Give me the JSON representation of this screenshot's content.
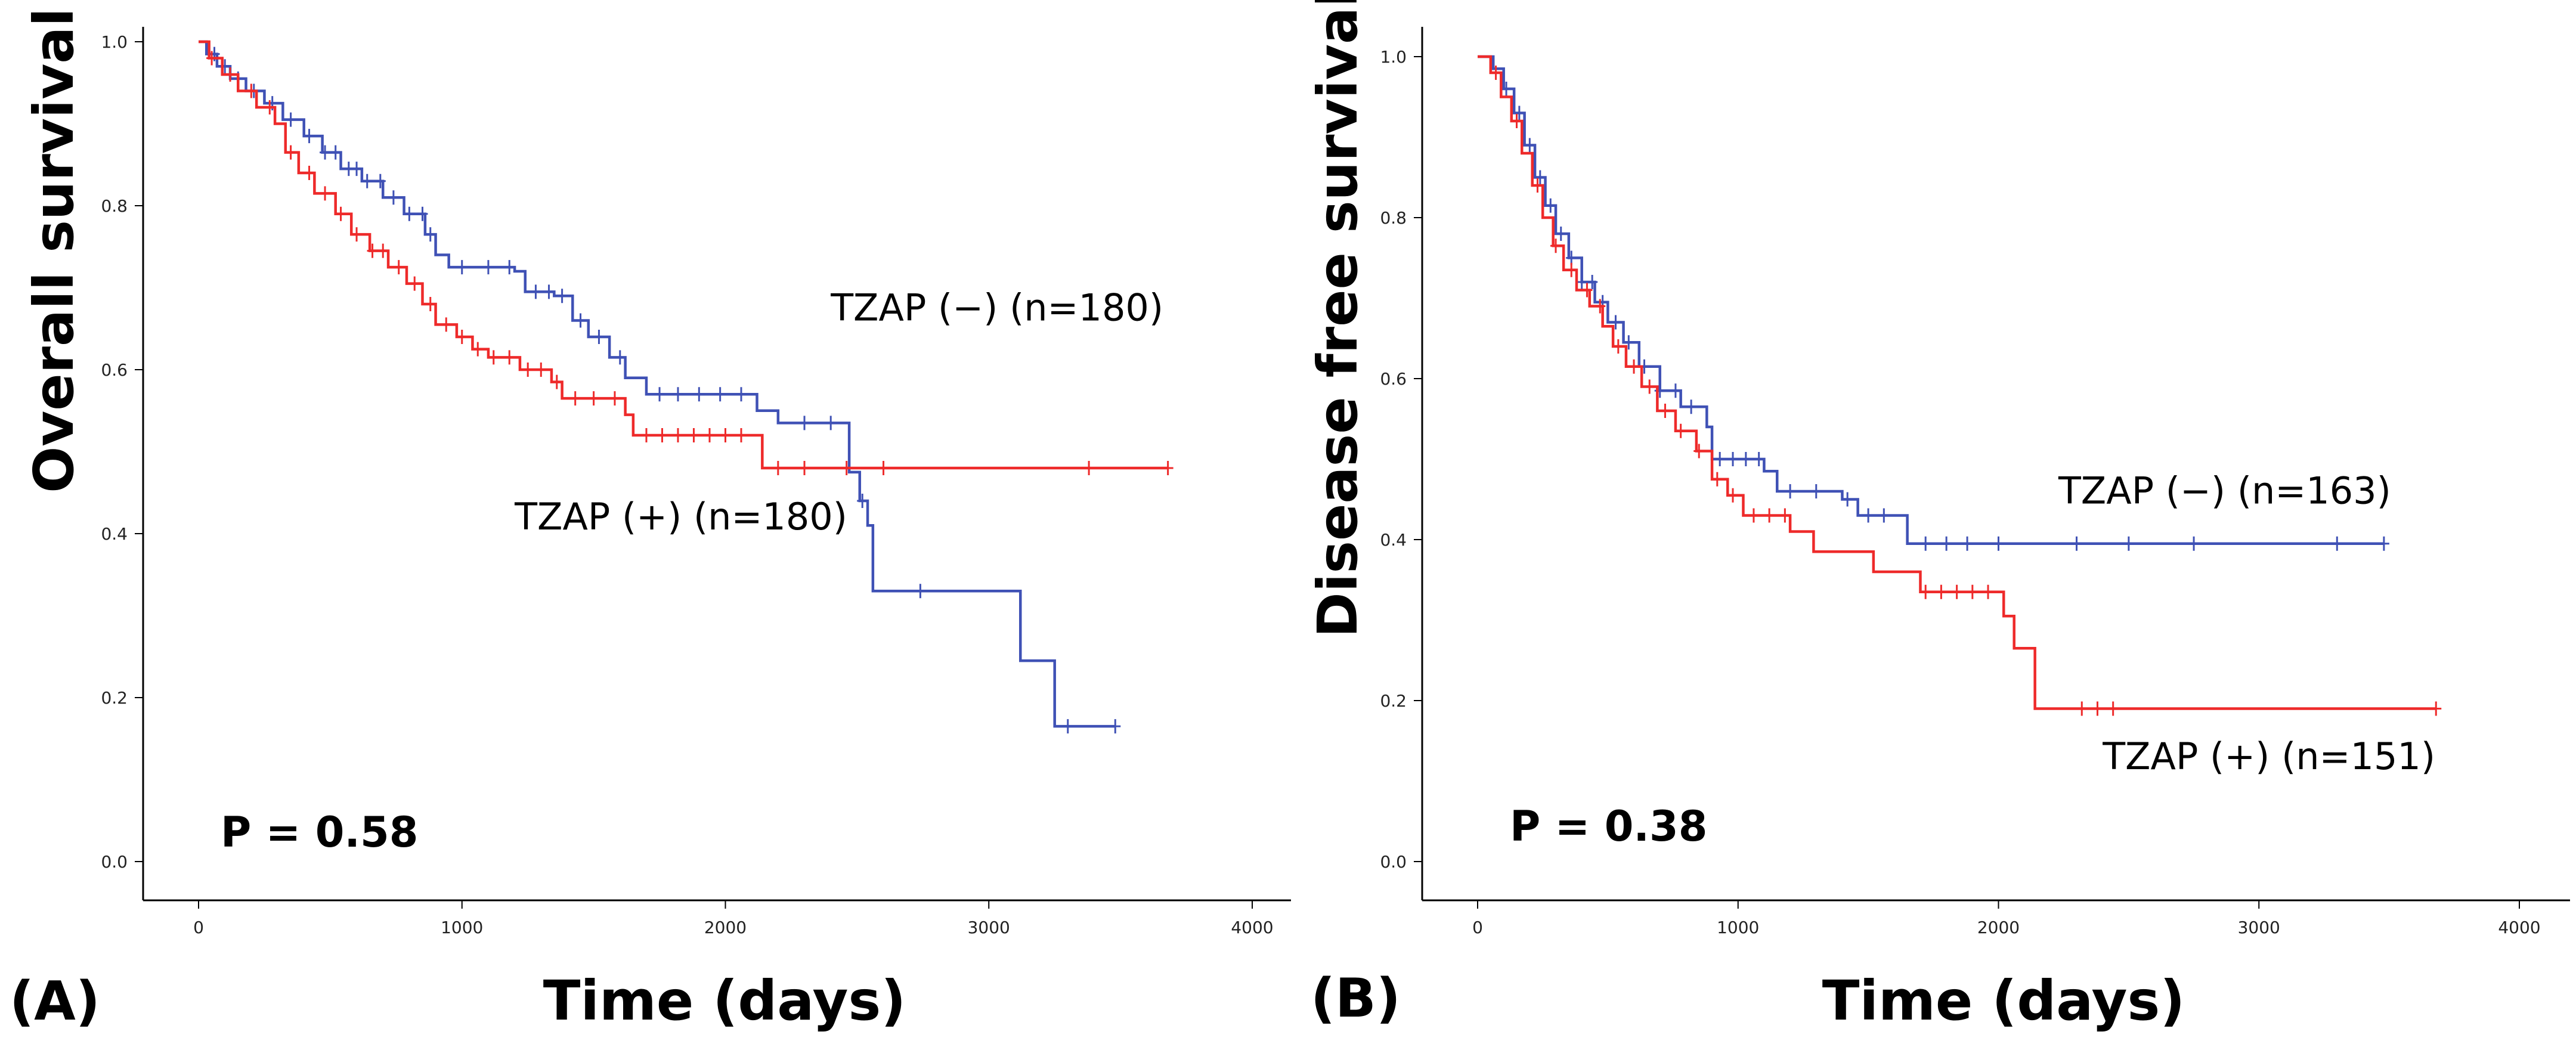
{
  "colors": {
    "negative": "#3f51b5",
    "positive": "#ee2a2a",
    "axis": "#000000"
  },
  "chart_data": [
    {
      "type": "line",
      "panel_label": "(A)",
      "ylabel": "Overall survival",
      "xlabel": "Time (days)",
      "xlim": [
        0,
        4000
      ],
      "ylim": [
        0,
        1.0
      ],
      "x_ticks": [
        "0",
        "1000",
        "2000",
        "3000",
        "4000"
      ],
      "y_ticks": [
        "0.0",
        "0.2",
        "0.4",
        "0.6",
        "0.8",
        "1.0"
      ],
      "p_value": "P = 0.58",
      "series": [
        {
          "name": "TZAP (−) (n=180)",
          "group": "negative",
          "steps": [
            [
              0,
              1.0
            ],
            [
              30,
              0.985
            ],
            [
              70,
              0.97
            ],
            [
              120,
              0.955
            ],
            [
              180,
              0.94
            ],
            [
              250,
              0.925
            ],
            [
              320,
              0.905
            ],
            [
              400,
              0.885
            ],
            [
              470,
              0.865
            ],
            [
              540,
              0.845
            ],
            [
              620,
              0.83
            ],
            [
              700,
              0.81
            ],
            [
              780,
              0.79
            ],
            [
              860,
              0.765
            ],
            [
              900,
              0.74
            ],
            [
              950,
              0.725
            ],
            [
              1200,
              0.72
            ],
            [
              1240,
              0.695
            ],
            [
              1350,
              0.69
            ],
            [
              1420,
              0.66
            ],
            [
              1480,
              0.64
            ],
            [
              1560,
              0.615
            ],
            [
              1620,
              0.59
            ],
            [
              1700,
              0.57
            ],
            [
              2120,
              0.55
            ],
            [
              2200,
              0.535
            ],
            [
              2470,
              0.475
            ],
            [
              2510,
              0.44
            ],
            [
              2540,
              0.41
            ],
            [
              2560,
              0.33
            ],
            [
              3120,
              0.245
            ],
            [
              3250,
              0.165
            ],
            [
              3480,
              0.165
            ]
          ],
          "censor_x": [
            60,
            100,
            150,
            210,
            280,
            350,
            420,
            480,
            520,
            570,
            600,
            640,
            690,
            740,
            800,
            850,
            880,
            1000,
            1100,
            1180,
            1280,
            1330,
            1380,
            1450,
            1520,
            1600,
            1750,
            1820,
            1900,
            1980,
            2060,
            2300,
            2400,
            2520,
            2740,
            3300,
            3480
          ]
        },
        {
          "name": "TZAP (+) (n=180)",
          "group": "positive",
          "steps": [
            [
              0,
              1.0
            ],
            [
              40,
              0.98
            ],
            [
              90,
              0.96
            ],
            [
              150,
              0.94
            ],
            [
              220,
              0.92
            ],
            [
              290,
              0.9
            ],
            [
              330,
              0.865
            ],
            [
              380,
              0.84
            ],
            [
              440,
              0.815
            ],
            [
              520,
              0.79
            ],
            [
              580,
              0.765
            ],
            [
              650,
              0.745
            ],
            [
              720,
              0.725
            ],
            [
              790,
              0.705
            ],
            [
              850,
              0.68
            ],
            [
              900,
              0.655
            ],
            [
              980,
              0.64
            ],
            [
              1040,
              0.625
            ],
            [
              1100,
              0.615
            ],
            [
              1220,
              0.6
            ],
            [
              1340,
              0.585
            ],
            [
              1380,
              0.565
            ],
            [
              1620,
              0.545
            ],
            [
              1650,
              0.52
            ],
            [
              2140,
              0.48
            ],
            [
              3680,
              0.48
            ]
          ],
          "censor_x": [
            50,
            120,
            200,
            270,
            350,
            420,
            480,
            540,
            600,
            660,
            700,
            760,
            820,
            880,
            940,
            1000,
            1060,
            1120,
            1180,
            1250,
            1300,
            1360,
            1430,
            1500,
            1580,
            1700,
            1760,
            1820,
            1880,
            1940,
            2000,
            2060,
            2200,
            2300,
            2460,
            2600,
            3380,
            3680
          ]
        }
      ],
      "legend": [
        {
          "text": "TZAP (−) (n=180)",
          "x": 2400,
          "y": 0.66
        },
        {
          "text": "TZAP (+) (n=180)",
          "x": 1200,
          "y": 0.405
        }
      ]
    },
    {
      "type": "line",
      "panel_label": "(B)",
      "ylabel": "Disease free survival",
      "xlabel": "Time (days)",
      "xlim": [
        0,
        4000
      ],
      "ylim": [
        0,
        1.0
      ],
      "x_ticks": [
        "0",
        "1000",
        "2000",
        "3000",
        "4000"
      ],
      "y_ticks": [
        "0.0",
        "0.2",
        "0.4",
        "0.6",
        "0.8",
        "1.0"
      ],
      "p_value": "P = 0.38",
      "series": [
        {
          "name": "TZAP (−) (n=163)",
          "group": "negative",
          "steps": [
            [
              0,
              1.0
            ],
            [
              60,
              0.985
            ],
            [
              100,
              0.96
            ],
            [
              140,
              0.93
            ],
            [
              180,
              0.89
            ],
            [
              220,
              0.85
            ],
            [
              260,
              0.815
            ],
            [
              300,
              0.78
            ],
            [
              350,
              0.75
            ],
            [
              400,
              0.72
            ],
            [
              450,
              0.695
            ],
            [
              500,
              0.67
            ],
            [
              560,
              0.645
            ],
            [
              620,
              0.615
            ],
            [
              700,
              0.585
            ],
            [
              780,
              0.565
            ],
            [
              880,
              0.54
            ],
            [
              900,
              0.5
            ],
            [
              1100,
              0.485
            ],
            [
              1150,
              0.46
            ],
            [
              1400,
              0.45
            ],
            [
              1460,
              0.43
            ],
            [
              1650,
              0.395
            ],
            [
              3480,
              0.395
            ]
          ],
          "censor_x": [
            110,
            160,
            200,
            240,
            280,
            320,
            360,
            400,
            440,
            480,
            530,
            580,
            640,
            700,
            760,
            820,
            930,
            980,
            1030,
            1080,
            1200,
            1300,
            1420,
            1500,
            1560,
            1720,
            1800,
            1880,
            2000,
            2300,
            2500,
            2750,
            3300,
            3480
          ]
        },
        {
          "name": "TZAP (+) (n=151)",
          "group": "positive",
          "steps": [
            [
              0,
              1.0
            ],
            [
              50,
              0.98
            ],
            [
              90,
              0.95
            ],
            [
              130,
              0.92
            ],
            [
              170,
              0.88
            ],
            [
              210,
              0.84
            ],
            [
              250,
              0.8
            ],
            [
              290,
              0.765
            ],
            [
              330,
              0.735
            ],
            [
              380,
              0.71
            ],
            [
              430,
              0.69
            ],
            [
              480,
              0.665
            ],
            [
              520,
              0.64
            ],
            [
              570,
              0.615
            ],
            [
              630,
              0.59
            ],
            [
              690,
              0.56
            ],
            [
              760,
              0.535
            ],
            [
              840,
              0.51
            ],
            [
              900,
              0.475
            ],
            [
              960,
              0.455
            ],
            [
              1020,
              0.43
            ],
            [
              1200,
              0.41
            ],
            [
              1290,
              0.385
            ],
            [
              1520,
              0.36
            ],
            [
              1700,
              0.335
            ],
            [
              2020,
              0.305
            ],
            [
              2060,
              0.265
            ],
            [
              2140,
              0.19
            ],
            [
              3680,
              0.19
            ]
          ],
          "censor_x": [
            70,
            150,
            230,
            300,
            360,
            420,
            470,
            540,
            600,
            660,
            720,
            780,
            850,
            920,
            980,
            1060,
            1120,
            1180,
            1720,
            1780,
            1840,
            1900,
            1960,
            2320,
            2380,
            2440,
            3680
          ]
        }
      ],
      "legend": [
        {
          "text": "TZAP (−) (n=163)",
          "x": 2230,
          "y": 0.445
        },
        {
          "text": "TZAP (+) (n=151)",
          "x": 2400,
          "y": 0.115
        }
      ]
    }
  ]
}
